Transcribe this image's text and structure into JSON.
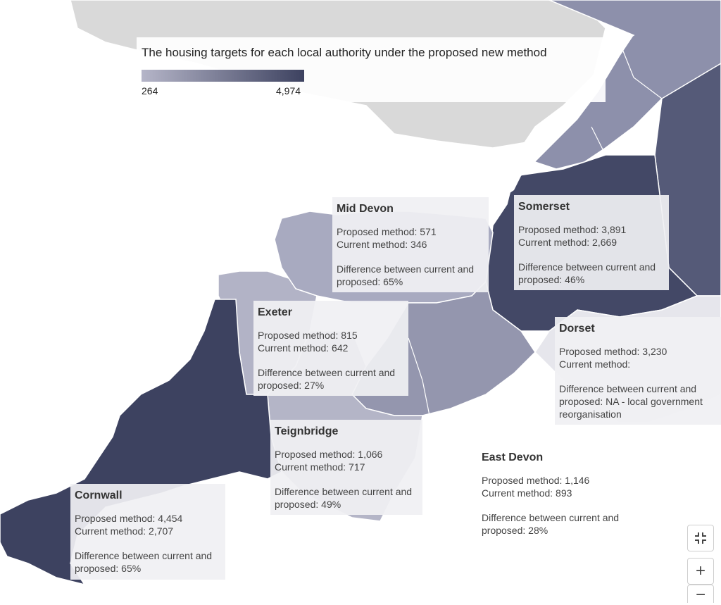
{
  "legend": {
    "title": "The housing targets for each local authority under the proposed new method",
    "min_label": "264",
    "max_label": "4,974",
    "color_min": "#b5b5c8",
    "color_max": "#3d4260"
  },
  "tooltips": [
    {
      "id": "mid-devon",
      "name": "Mid Devon",
      "proposed": "Proposed method: 571",
      "current": "Current method: 346",
      "diff1": "Difference between current and",
      "diff2": "proposed: 65%",
      "diff3": ""
    },
    {
      "id": "somerset",
      "name": "Somerset",
      "proposed": "Proposed method: 3,891",
      "current": "Current method: 2,669",
      "diff1": "Difference between current and",
      "diff2": "proposed: 46%",
      "diff3": ""
    },
    {
      "id": "exeter",
      "name": "Exeter",
      "proposed": "Proposed method: 815",
      "current": "Current method: 642",
      "diff1": "Difference between current and",
      "diff2": "proposed: 27%",
      "diff3": ""
    },
    {
      "id": "dorset",
      "name": "Dorset",
      "proposed": "Proposed method: 3,230",
      "current": "Current method:",
      "diff1": "Difference between current and",
      "diff2": "proposed: NA - local government",
      "diff3": "reorganisation"
    },
    {
      "id": "teignbridge",
      "name": "Teignbridge",
      "proposed": "Proposed method: 1,066",
      "current": "Current method: 717",
      "diff1": "Difference between current and",
      "diff2": "proposed: 49%",
      "diff3": ""
    },
    {
      "id": "east-devon",
      "name": "East Devon",
      "proposed": "Proposed method: 1,146",
      "current": "Current method: 893",
      "diff1": "Difference between current and",
      "diff2": "proposed: 28%",
      "diff3": ""
    },
    {
      "id": "cornwall",
      "name": "Cornwall",
      "proposed": "Proposed method: 4,454",
      "current": "Current method: 2,707",
      "diff1": "Difference between current and",
      "diff2": "proposed: 65%",
      "diff3": ""
    }
  ],
  "controls": {
    "fullscreen_icon": "fullscreen-exit-icon",
    "zoom_in_label": "+",
    "zoom_out_label": "−"
  }
}
